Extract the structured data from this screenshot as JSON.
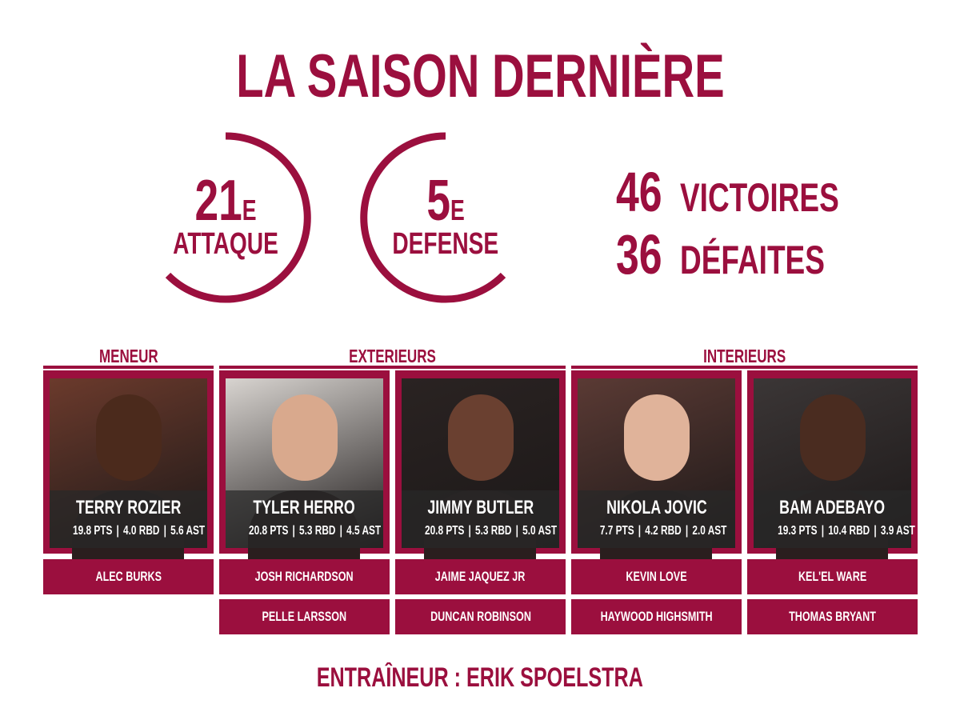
{
  "title": "LA SAISON DERNIÈRE",
  "rankings": [
    {
      "rank": "21",
      "suffix": "E",
      "label": "ATTAQUE"
    },
    {
      "rank": "5",
      "suffix": "E",
      "label": "DEFENSE"
    }
  ],
  "record": [
    {
      "count": "46",
      "label": "VICTOIRES"
    },
    {
      "count": "36",
      "label": "DÉFAITES"
    }
  ],
  "groups": [
    {
      "label": "MENEUR",
      "players": [
        {
          "name": "TERRY ROZIER",
          "stats": [
            "19.8 PTS",
            "4.0 RBD",
            "5.6 AST"
          ],
          "bench": [
            "ALEC BURKS"
          ]
        }
      ]
    },
    {
      "label": "EXTERIEURS",
      "players": [
        {
          "name": "TYLER HERRO",
          "stats": [
            "20.8 PTS",
            "5.3 RBD",
            "4.5 AST"
          ],
          "bench": [
            "JOSH RICHARDSON",
            "PELLE LARSSON"
          ]
        },
        {
          "name": "JIMMY BUTLER",
          "stats": [
            "20.8 PTS",
            "5.3 RBD",
            "5.0 AST"
          ],
          "bench": [
            "JAIME JAQUEZ JR",
            "DUNCAN ROBINSON"
          ]
        }
      ]
    },
    {
      "label": "INTERIEURS",
      "players": [
        {
          "name": "NIKOLA JOVIC",
          "stats": [
            "7.7 PTS",
            "4.2 RBD",
            "2.0 AST"
          ],
          "bench": [
            "KEVIN LOVE",
            "HAYWOOD HIGHSMITH"
          ]
        },
        {
          "name": "BAM ADEBAYO",
          "stats": [
            "19.3 PTS",
            "10.4 RBD",
            "3.9 AST"
          ],
          "bench": [
            "KEL'EL WARE",
            "THOMAS BRYANT"
          ]
        }
      ]
    }
  ],
  "coach": "ENTRAÎNEUR : ERIK SPOELSTRA"
}
